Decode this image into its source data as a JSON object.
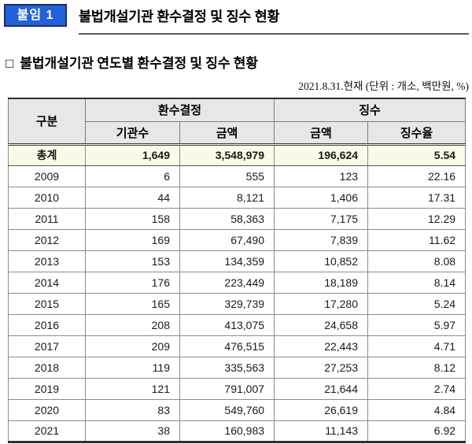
{
  "header": {
    "badge_label": "붙임 1",
    "title": "불법개설기관 환수결정 및 징수 현황"
  },
  "section": {
    "bullet": "□",
    "subtitle": "불법개설기관 연도별 환수결정 및 징수 현황",
    "date_unit_note": "2021.8.31.현재 (단위 : 개소, 백만원, %)"
  },
  "colors": {
    "badge_bg": "#2262d9",
    "badge_border": "#1c2a6e",
    "header_bg": "#e7e7e7",
    "total_row_bg": "#fafae6"
  },
  "table": {
    "group_headers": {
      "category": "구분",
      "recovery_decision": "환수결정",
      "collection": "징수"
    },
    "sub_headers": [
      "기관수",
      "금액",
      "금액",
      "징수율"
    ],
    "total_row": {
      "label": "총계",
      "institutions": "1,649",
      "decided_amount": "3,548,979",
      "collected_amount": "196,624",
      "collection_rate": "5.54"
    },
    "rows": [
      {
        "year": "2009",
        "institutions": "6",
        "decided_amount": "555",
        "collected_amount": "123",
        "collection_rate": "22.16"
      },
      {
        "year": "2010",
        "institutions": "44",
        "decided_amount": "8,121",
        "collected_amount": "1,406",
        "collection_rate": "17.31"
      },
      {
        "year": "2011",
        "institutions": "158",
        "decided_amount": "58,363",
        "collected_amount": "7,175",
        "collection_rate": "12.29"
      },
      {
        "year": "2012",
        "institutions": "169",
        "decided_amount": "67,490",
        "collected_amount": "7,839",
        "collection_rate": "11.62"
      },
      {
        "year": "2013",
        "institutions": "153",
        "decided_amount": "134,359",
        "collected_amount": "10,852",
        "collection_rate": "8.08"
      },
      {
        "year": "2014",
        "institutions": "176",
        "decided_amount": "223,449",
        "collected_amount": "18,189",
        "collection_rate": "8.14"
      },
      {
        "year": "2015",
        "institutions": "165",
        "decided_amount": "329,739",
        "collected_amount": "17,280",
        "collection_rate": "5.24"
      },
      {
        "year": "2016",
        "institutions": "208",
        "decided_amount": "413,075",
        "collected_amount": "24,658",
        "collection_rate": "5.97"
      },
      {
        "year": "2017",
        "institutions": "209",
        "decided_amount": "476,515",
        "collected_amount": "22,443",
        "collection_rate": "4.71"
      },
      {
        "year": "2018",
        "institutions": "119",
        "decided_amount": "335,563",
        "collected_amount": "27,253",
        "collection_rate": "8.12"
      },
      {
        "year": "2019",
        "institutions": "121",
        "decided_amount": "791,007",
        "collected_amount": "21,644",
        "collection_rate": "2.74"
      },
      {
        "year": "2020",
        "institutions": "83",
        "decided_amount": "549,760",
        "collected_amount": "26,619",
        "collection_rate": "4.84"
      },
      {
        "year": "2021",
        "institutions": "38",
        "decided_amount": "160,983",
        "collected_amount": "11,143",
        "collection_rate": "6.92"
      }
    ]
  }
}
